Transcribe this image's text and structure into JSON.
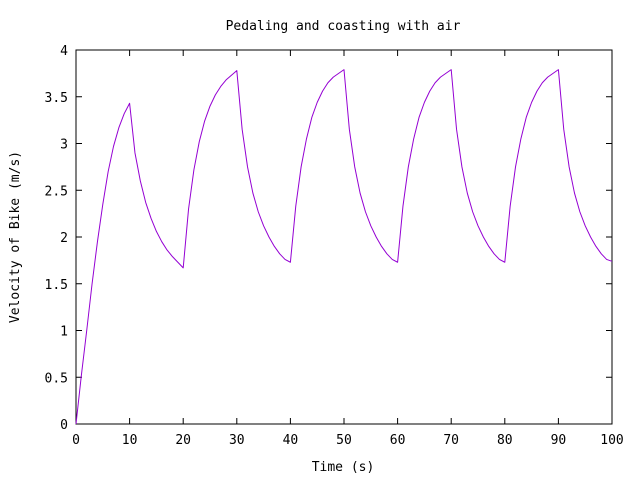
{
  "chart_data": {
    "type": "line",
    "title": "Pedaling and coasting with air",
    "xlabel": "Time (s)",
    "ylabel": "Velocity of Bike (m/s)",
    "xlim": [
      0,
      100
    ],
    "ylim": [
      0,
      4
    ],
    "xticks": [
      0,
      10,
      20,
      30,
      40,
      50,
      60,
      70,
      80,
      90,
      100
    ],
    "yticks": [
      0,
      0.5,
      1,
      1.5,
      2,
      2.5,
      3,
      3.5,
      4
    ],
    "grid": false,
    "legend": "none",
    "line_color": "#9400d3",
    "series": [
      {
        "x": [
          0,
          1,
          2,
          3,
          4,
          5,
          6,
          7,
          8,
          9,
          10,
          11,
          12,
          13,
          14,
          15,
          16,
          17,
          18,
          19,
          20,
          21,
          22,
          23,
          24,
          25,
          26,
          27,
          28,
          29,
          30,
          31,
          32,
          33,
          34,
          35,
          36,
          37,
          38,
          39,
          40,
          41,
          42,
          43,
          44,
          45,
          46,
          47,
          48,
          49,
          50,
          51,
          52,
          53,
          54,
          55,
          56,
          57,
          58,
          59,
          60,
          61,
          62,
          63,
          64,
          65,
          66,
          67,
          68,
          69,
          70,
          71,
          72,
          73,
          74,
          75,
          76,
          77,
          78,
          79,
          80,
          81,
          82,
          83,
          84,
          85,
          86,
          87,
          88,
          89,
          90,
          91,
          92,
          93,
          94,
          95,
          96,
          97,
          98,
          99,
          100
        ],
        "y": [
          0,
          0.52,
          1.0,
          1.5,
          1.95,
          2.35,
          2.7,
          2.97,
          3.17,
          3.32,
          3.43,
          2.9,
          2.6,
          2.37,
          2.2,
          2.06,
          1.95,
          1.86,
          1.79,
          1.73,
          1.67,
          2.3,
          2.72,
          3.02,
          3.24,
          3.4,
          3.52,
          3.61,
          3.68,
          3.73,
          3.78,
          3.15,
          2.75,
          2.47,
          2.27,
          2.12,
          2.0,
          1.9,
          1.82,
          1.76,
          1.73,
          2.33,
          2.75,
          3.05,
          3.28,
          3.44,
          3.56,
          3.65,
          3.71,
          3.75,
          3.79,
          3.15,
          2.75,
          2.47,
          2.27,
          2.12,
          2.0,
          1.9,
          1.82,
          1.76,
          1.73,
          2.33,
          2.75,
          3.05,
          3.28,
          3.44,
          3.56,
          3.65,
          3.71,
          3.75,
          3.79,
          3.15,
          2.75,
          2.47,
          2.27,
          2.12,
          2.0,
          1.9,
          1.82,
          1.76,
          1.73,
          2.33,
          2.75,
          3.05,
          3.28,
          3.44,
          3.56,
          3.65,
          3.71,
          3.75,
          3.79,
          3.15,
          2.75,
          2.47,
          2.27,
          2.12,
          2.0,
          1.9,
          1.82,
          1.76,
          1.74
        ]
      }
    ]
  }
}
